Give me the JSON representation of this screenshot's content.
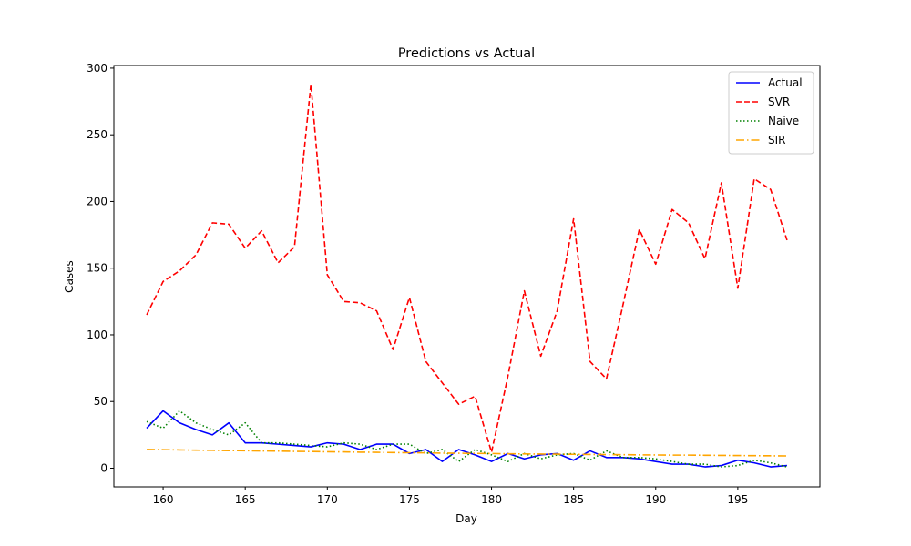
{
  "chart_data": {
    "type": "line",
    "title": "Predictions vs Actual",
    "xlabel": "Day",
    "ylabel": "Cases",
    "xlim": [
      157,
      200
    ],
    "ylim": [
      -14,
      302
    ],
    "xticks": [
      160,
      165,
      170,
      175,
      180,
      185,
      190,
      195
    ],
    "yticks": [
      0,
      50,
      100,
      150,
      200,
      250,
      300
    ],
    "grid": false,
    "legend_position": "top-right",
    "x": [
      159,
      160,
      161,
      162,
      163,
      164,
      165,
      166,
      167,
      168,
      169,
      170,
      171,
      172,
      173,
      174,
      175,
      176,
      177,
      178,
      179,
      180,
      181,
      182,
      183,
      184,
      185,
      186,
      187,
      188,
      189,
      190,
      191,
      192,
      193,
      194,
      195,
      196,
      197,
      198
    ],
    "series": [
      {
        "name": "Actual",
        "color": "#0000ff",
        "style": "solid",
        "values": [
          30,
          43,
          34,
          29,
          25,
          34,
          19,
          19,
          18,
          17,
          16,
          19,
          18,
          14,
          18,
          18,
          11,
          14,
          5,
          14,
          10,
          5,
          11,
          7,
          10,
          11,
          6,
          13,
          8,
          8,
          7,
          5,
          3,
          3,
          1,
          2,
          6,
          4,
          1,
          2
        ]
      },
      {
        "name": "SVR",
        "color": "#ff0000",
        "style": "dashed",
        "values": [
          115,
          140,
          148,
          160,
          184,
          183,
          165,
          178,
          154,
          166,
          288,
          145,
          125,
          124,
          118,
          89,
          128,
          80,
          64,
          48,
          54,
          12,
          69,
          133,
          84,
          118,
          187,
          80,
          67,
          122,
          179,
          153,
          194,
          184,
          157,
          214,
          135,
          217,
          209,
          171
        ]
      },
      {
        "name": "Naive",
        "color": "#008000",
        "style": "dotted",
        "values": [
          35,
          30,
          43,
          34,
          29,
          25,
          34,
          19,
          19,
          18,
          17,
          16,
          19,
          18,
          14,
          18,
          18,
          11,
          14,
          5,
          14,
          10,
          5,
          11,
          7,
          10,
          11,
          6,
          13,
          8,
          8,
          7,
          5,
          3,
          3,
          1,
          2,
          6,
          4,
          1
        ]
      },
      {
        "name": "SIR",
        "color": "#ffa500",
        "style": "dashdot",
        "values": [
          14,
          13.9,
          13.7,
          13.5,
          13.4,
          13.2,
          13.1,
          12.9,
          12.8,
          12.6,
          12.5,
          12.3,
          12.2,
          12.0,
          11.9,
          11.7,
          11.6,
          11.5,
          11.3,
          11.2,
          11.1,
          11.0,
          10.8,
          10.7,
          10.6,
          10.5,
          10.4,
          10.3,
          10.2,
          10.1,
          10.0,
          9.9,
          9.8,
          9.8,
          9.7,
          9.6,
          9.5,
          9.4,
          9.3,
          9.2
        ]
      }
    ]
  }
}
